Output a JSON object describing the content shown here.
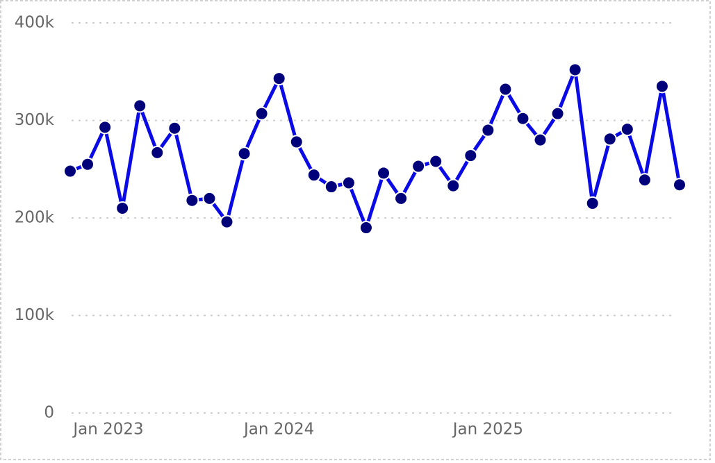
{
  "chart_data": {
    "type": "line",
    "x": [
      "2023-01",
      "2023-02",
      "2023-03",
      "2023-04",
      "2023-05",
      "2023-06",
      "2023-07",
      "2023-08",
      "2023-09",
      "2023-10",
      "2023-11",
      "2023-12",
      "2024-01",
      "2024-02",
      "2024-03",
      "2024-04",
      "2024-05",
      "2024-06",
      "2024-07",
      "2024-08",
      "2024-09",
      "2024-10",
      "2024-11",
      "2024-12",
      "2025-01",
      "2025-02",
      "2025-03",
      "2025-04",
      "2025-05",
      "2025-06",
      "2025-07",
      "2025-08",
      "2025-09",
      "2025-10",
      "2025-11",
      "2025-12"
    ],
    "series": [
      {
        "color": "#0a0ae6",
        "marker_color": "#00007a",
        "values": [
          248000,
          255000,
          293000,
          210000,
          315000,
          267000,
          292000,
          218000,
          220000,
          196000,
          266000,
          307000,
          343000,
          278000,
          244000,
          232000,
          236000,
          190000,
          246000,
          220000,
          253000,
          258000,
          233000,
          264000,
          290000,
          332000,
          302000,
          280000,
          307000,
          352000,
          215000,
          281000,
          291000,
          239000,
          335000,
          234000
        ]
      }
    ],
    "xticks": [
      {
        "value": "2023-01",
        "label": "Jan 2023"
      },
      {
        "value": "2024-01",
        "label": "Jan 2024"
      },
      {
        "value": "2025-01",
        "label": "Jan 2025"
      }
    ],
    "ylim": [
      0,
      400000
    ],
    "yticks": [
      0,
      {
        "value": 100000,
        "label": "100k"
      },
      {
        "value": 200000,
        "label": "200k"
      },
      {
        "value": 300000,
        "label": "300k"
      },
      {
        "value": 400000,
        "label": "400k"
      }
    ],
    "grid": true
  }
}
